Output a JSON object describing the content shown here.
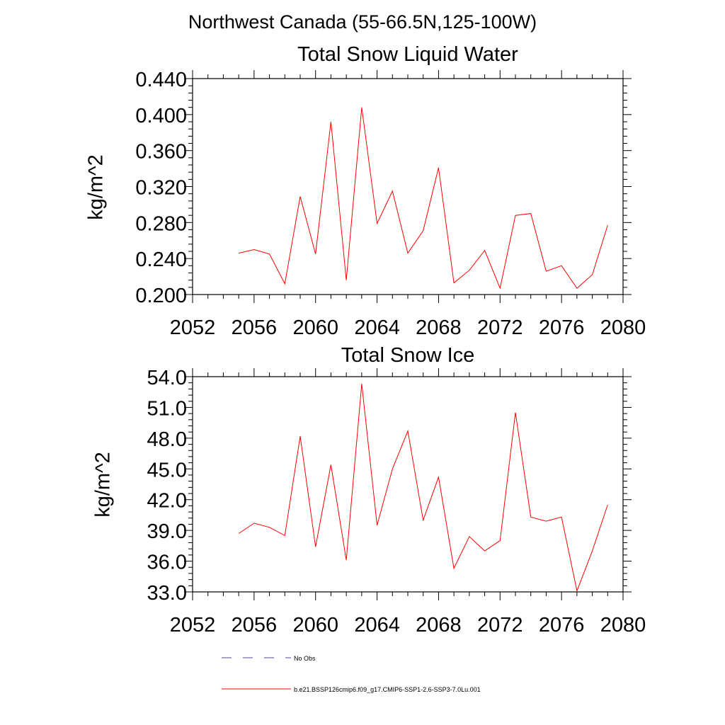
{
  "figure": {
    "suptitle": "Northwest Canada (55-66.5N,125-100W)"
  },
  "legend": {
    "items": [
      {
        "label": "No Obs",
        "color": "#4a4a9a",
        "dash": "dashed"
      },
      {
        "label": "b.e21.BSSP126cmip6.f09_g17.CMIP6-SSP1-2.6-SSP3-7.0Lu.001",
        "color": "#ff0000",
        "dash": "solid"
      }
    ]
  },
  "chart_data": [
    {
      "type": "line",
      "title": "Total Snow Liquid Water",
      "ylabel": "kg/m^2",
      "xlabel": "",
      "xlim": [
        2052,
        2080
      ],
      "ylim": [
        0.2,
        0.44
      ],
      "xticks": [
        "2052",
        "2056",
        "2060",
        "2064",
        "2068",
        "2072",
        "2076",
        "2080"
      ],
      "yticks": [
        "0.200",
        "0.240",
        "0.280",
        "0.320",
        "0.360",
        "0.400",
        "0.440"
      ],
      "series": [
        {
          "color": "#ff0000",
          "x": [
            2055,
            2056,
            2057,
            2058,
            2059,
            2060,
            2061,
            2062,
            2063,
            2064,
            2065,
            2066,
            2067,
            2068,
            2069,
            2070,
            2071,
            2072,
            2073,
            2074,
            2075,
            2076,
            2077,
            2078,
            2079
          ],
          "values": [
            0.246,
            0.25,
            0.245,
            0.212,
            0.309,
            0.245,
            0.392,
            0.216,
            0.408,
            0.279,
            0.315,
            0.246,
            0.271,
            0.341,
            0.213,
            0.227,
            0.249,
            0.207,
            0.288,
            0.29,
            0.226,
            0.232,
            0.207,
            0.222,
            0.277
          ]
        }
      ]
    },
    {
      "type": "line",
      "title": "Total Snow Ice",
      "ylabel": "kg/m^2",
      "xlabel": "",
      "xlim": [
        2052,
        2080
      ],
      "ylim": [
        33.0,
        54.0
      ],
      "xticks": [
        "2052",
        "2056",
        "2060",
        "2064",
        "2068",
        "2072",
        "2076",
        "2080"
      ],
      "yticks": [
        "33.0",
        "36.0",
        "39.0",
        "42.0",
        "45.0",
        "48.0",
        "51.0",
        "54.0"
      ],
      "series": [
        {
          "color": "#ff0000",
          "x": [
            2055,
            2056,
            2057,
            2058,
            2059,
            2060,
            2061,
            2062,
            2063,
            2064,
            2065,
            2066,
            2067,
            2068,
            2069,
            2070,
            2071,
            2072,
            2073,
            2074,
            2075,
            2076,
            2077,
            2078,
            2079
          ],
          "values": [
            38.7,
            39.7,
            39.3,
            38.5,
            48.2,
            37.4,
            45.4,
            36.1,
            53.3,
            39.5,
            45.0,
            48.7,
            40.0,
            44.2,
            35.3,
            38.4,
            37.0,
            38.0,
            50.5,
            40.3,
            39.9,
            40.3,
            33.1,
            37.0,
            41.5
          ]
        }
      ]
    }
  ]
}
